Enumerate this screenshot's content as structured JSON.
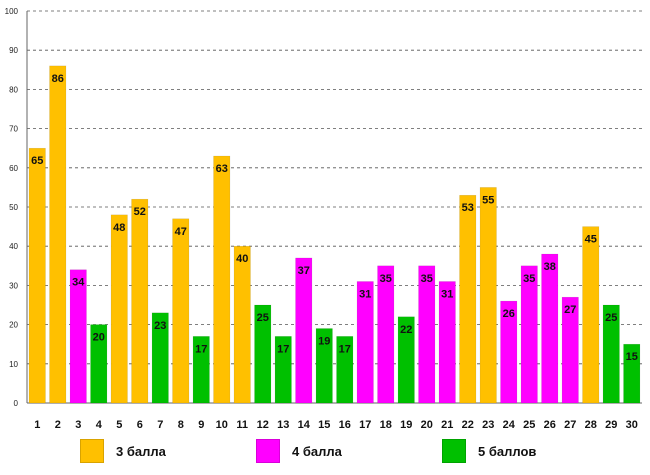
{
  "colors": {
    "3": "#FFC000",
    "4": "#FF00FF",
    "5": "#00C000"
  },
  "legend": [
    {
      "grade": "3",
      "label": "3 балла"
    },
    {
      "grade": "4",
      "label": "4 балла"
    },
    {
      "grade": "5",
      "label": "5 баллов"
    }
  ],
  "chart_data": {
    "type": "bar",
    "title": "",
    "xlabel": "",
    "ylabel": "",
    "ylim": [
      0,
      100
    ],
    "ytick_step": 10,
    "grid": true,
    "legend_position": "bottom",
    "categories": [
      "1",
      "2",
      "3",
      "4",
      "5",
      "6",
      "7",
      "8",
      "9",
      "10",
      "11",
      "12",
      "13",
      "14",
      "15",
      "16",
      "17",
      "18",
      "19",
      "20",
      "21",
      "22",
      "23",
      "24",
      "25",
      "26",
      "27",
      "28",
      "29",
      "30"
    ],
    "values": [
      65,
      86,
      34,
      20,
      48,
      52,
      23,
      47,
      17,
      63,
      40,
      25,
      17,
      37,
      19,
      17,
      31,
      35,
      22,
      35,
      31,
      53,
      55,
      26,
      35,
      38,
      27,
      45,
      25,
      15
    ],
    "series_by_bar": [
      "3",
      "3",
      "4",
      "5",
      "3",
      "3",
      "5",
      "3",
      "5",
      "3",
      "3",
      "5",
      "5",
      "4",
      "5",
      "5",
      "4",
      "4",
      "5",
      "4",
      "4",
      "3",
      "3",
      "4",
      "4",
      "4",
      "4",
      "3",
      "5",
      "5"
    ]
  }
}
